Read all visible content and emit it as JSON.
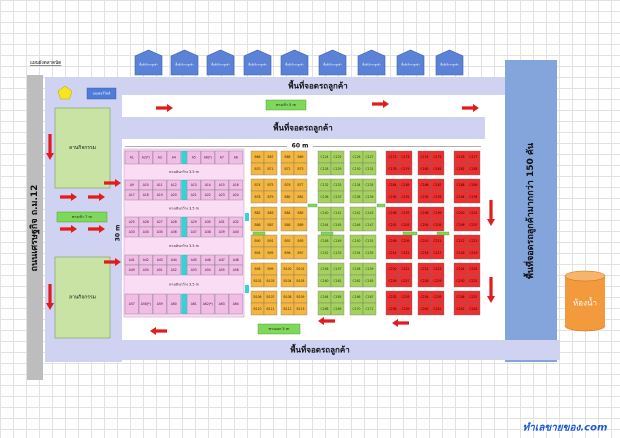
{
  "title": "แผนผังตลาดนัด",
  "tents": [
    "พื้นที่บริการลูกค้า",
    "พื้นที่บริการลูกค้า",
    "พื้นที่บริการลูกค้า",
    "พื้นที่บริการลูกค้า",
    "พื้นที่บริการลูกค้า",
    "พื้นที่บริการลูกค้า",
    "พื้นที่บริการลูกค้า",
    "พื้นที่บริการลูกค้า",
    "พื้นที่บริการลูกค้า"
  ],
  "road_label": "ถนนเศรษฐกิจ ถ.ม.12",
  "motorbike_label": "มอเตอร์ไซค์",
  "parking": {
    "top": "พื้นที่จอดรถลูกค้า",
    "inner": "พื้นที่จอดรถลูกค้า",
    "bottom": "พื้นที่จอดรถลูกค้า",
    "right": "พื้นที่จอดรถลูกค้ามากกว่า 150 คัน"
  },
  "entrances": {
    "top": "ทางเข้า 5 m",
    "left": "ทางเข้า 7 m"
  },
  "exit": "ทางออก 5 m",
  "activity_areas": [
    "ลานกิจกรรม",
    "ลานกิจกรรม"
  ],
  "dimensions": {
    "width": "60 m",
    "depth": "30 m"
  },
  "corridor_labels": [
    "ทางเดินกว้าง 3.5 m",
    "ทางเดินกว้าง 3.5 m",
    "ทางเดินกว้าง 3.5 m",
    "ทางเดินกว้าง 3.5 m"
  ],
  "restroom": "ห้องน้ำ",
  "logo": "ทำเลขายของ.com",
  "stalls": {
    "zone_a": [
      "A1",
      "A2(*)",
      "A3",
      "A4",
      "A5",
      "A6(*)",
      "A7",
      "A8",
      "A9",
      "A10",
      "A11",
      "A12",
      "A13",
      "A14",
      "A15",
      "A16",
      "A17",
      "A18",
      "A19",
      "A20",
      "A21",
      "A22",
      "A23",
      "A24",
      "A25",
      "A26",
      "A27",
      "A28",
      "A29",
      "A30",
      "A31",
      "A32",
      "A33",
      "A34",
      "A35",
      "A36",
      "A37",
      "A38",
      "A39",
      "A40",
      "A41",
      "A42",
      "A43",
      "A44",
      "A45",
      "A46",
      "A47",
      "A48",
      "A49",
      "A50",
      "A51",
      "A52",
      "A53",
      "A54",
      "A55",
      "A56",
      "A57",
      "A58(*)",
      "A59",
      "A60",
      "A61",
      "A62(*)",
      "A63",
      "A64"
    ],
    "zone_b": [
      "B66",
      "B67",
      "B68",
      "B69",
      "B70",
      "B71",
      "B72",
      "B73",
      "B74",
      "B75",
      "B76",
      "B77",
      "B78",
      "B79",
      "B80",
      "B81",
      "B82",
      "B83",
      "B84",
      "B85",
      "B86",
      "B87",
      "B88",
      "B89",
      "B90",
      "B91",
      "B92",
      "B93",
      "B94",
      "B95",
      "B96",
      "B97",
      "B98",
      "B99",
      "B100",
      "B101",
      "B102",
      "B103",
      "B104",
      "B105",
      "B106",
      "B107",
      "B108",
      "B109",
      "B110",
      "B111",
      "B112",
      "B113"
    ],
    "zone_c": [
      "C124",
      "C125",
      "C126",
      "C127",
      "C128",
      "C129",
      "C130",
      "C131",
      "C132",
      "C133",
      "C134",
      "C135",
      "C136",
      "C137",
      "C138",
      "C139",
      "C140",
      "C141",
      "C142",
      "C143",
      "C144",
      "C145",
      "C146",
      "C147",
      "C148",
      "C149",
      "C150",
      "C151",
      "C152",
      "C153",
      "C154",
      "C155",
      "C156",
      "C157",
      "C158",
      "C159",
      "C160",
      "C161",
      "C162",
      "C163",
      "C164",
      "C165",
      "C166",
      "C167",
      "C168",
      "C169",
      "C170",
      "C171"
    ],
    "zone_d": [
      "C172",
      "C173",
      "C174",
      "C175",
      "C176",
      "C177",
      "C178",
      "C179",
      "C180",
      "C181",
      "C182",
      "C183",
      "C184",
      "C185",
      "C186",
      "C187",
      "C188",
      "C189",
      "C190",
      "C191",
      "C192",
      "C193",
      "C194",
      "C195",
      "C196",
      "C197",
      "C198",
      "C199",
      "C200",
      "C201",
      "C202",
      "C203",
      "C204",
      "C205",
      "C206",
      "C207",
      "C208",
      "C209",
      "C210",
      "C211",
      "C212",
      "C213",
      "C214",
      "C215",
      "C216",
      "C217",
      "C218",
      "C219",
      "C220",
      "C221",
      "C222",
      "C223",
      "C224",
      "C225",
      "C226",
      "C227",
      "C228",
      "C229",
      "C230",
      "C231",
      "C232",
      "C233",
      "C234",
      "C235",
      "C236",
      "C237",
      "C238",
      "C239",
      "C240",
      "C241",
      "C242",
      "C243"
    ]
  },
  "colors": {
    "lavender": "#cfd2f1",
    "right_bar": "#84a4dc",
    "road": "#bdbdbd",
    "tent": "#5b82d6",
    "tent_border": "#3c5fa9",
    "zone_a": "#f1bde6",
    "zone_a_bg": "#fadcf4",
    "zone_b": "#f4b63f",
    "zone_c": "#a5d25e",
    "zone_d": "#ec2f2f",
    "cyan": "#35d3d6",
    "green_box": "#7fd85a",
    "activity": "#c8e3a4",
    "arrow": "#e21b1b",
    "restroom": "#f39a3c",
    "restroom_top": "#f7b56c",
    "pentagon": "#f6e622",
    "motorbike": "#4f7bd9",
    "logo": "#1f58d4",
    "white": "#ffffff"
  }
}
